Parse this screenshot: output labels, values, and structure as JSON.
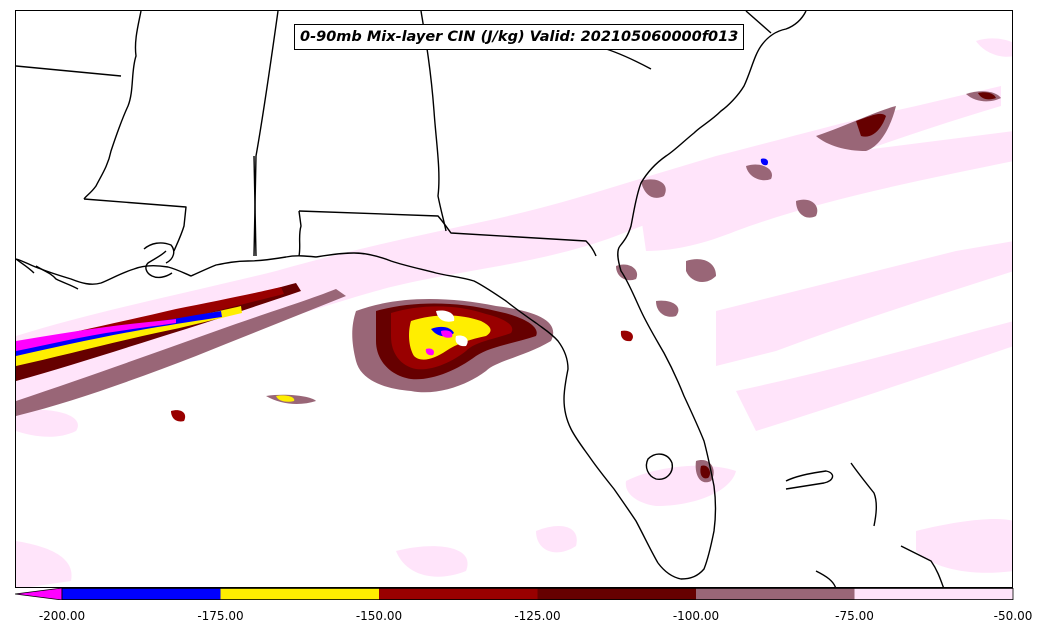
{
  "map": {
    "title": "0-90mb Mix-layer CIN (J/kg) Valid: 202105060000f013",
    "colorbar": {
      "ticks": [
        "-200.00",
        "-175.00",
        "-150.00",
        "-125.00",
        "-100.00",
        "-75.00",
        "-50.00"
      ],
      "levels": [
        {
          "range": "< -200",
          "color": "#ff00ff"
        },
        {
          "range": "-200 to -175",
          "color": "#0000ff"
        },
        {
          "range": "-175 to -150",
          "color": "#ffee00"
        },
        {
          "range": "-150 to -125",
          "color": "#990000"
        },
        {
          "range": "-125 to -100",
          "color": "#660000"
        },
        {
          "range": "-100 to -75",
          "color": "#996677"
        },
        {
          "range": "-75 to -50",
          "color": "#ffe4fa"
        }
      ]
    }
  }
}
